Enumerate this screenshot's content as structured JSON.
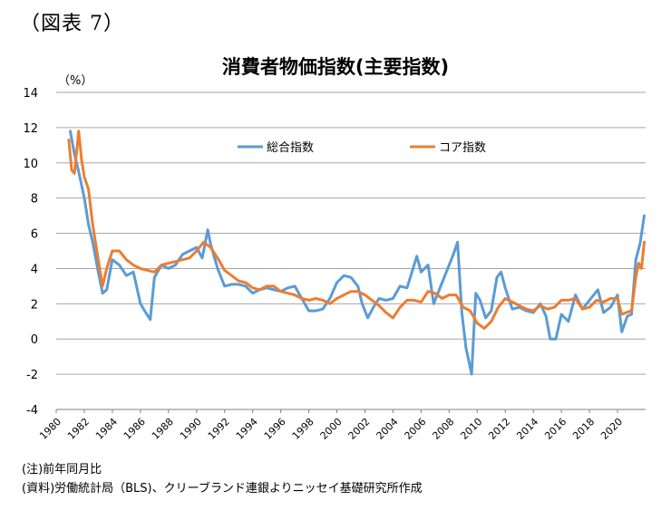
{
  "figure_label": "（図表 7）",
  "notes": {
    "note": "(注)前年同月比",
    "source": "(資料)労働統計局（BLS)、クリーブランド連銀よりニッセイ基礎研究所作成"
  },
  "colors": {
    "headline": "#5b9bd5",
    "core": "#ed7d31",
    "grid": "#a6a6a6"
  },
  "chart_data": {
    "type": "line",
    "title": "消費者物価指数(主要指数)",
    "ylabel": "（%）",
    "xlabel": "",
    "ylim": [
      -4,
      14
    ],
    "xlim": [
      1980,
      2022
    ],
    "yticks": [
      "-4",
      "-2",
      "0",
      "2",
      "4",
      "6",
      "8",
      "10",
      "12",
      "14"
    ],
    "xticks": [
      "1980",
      "1982",
      "1984",
      "1986",
      "1988",
      "1990",
      "1992",
      "1994",
      "1996",
      "1998",
      "2000",
      "2002",
      "2004",
      "2006",
      "2008",
      "2010",
      "2012",
      "2014",
      "2016",
      "2018",
      "2020"
    ],
    "grid": "horizontal",
    "legend_position": "top",
    "series": [
      {
        "name": "総合指数",
        "x": [
          1981.0,
          1981.3,
          1981.6,
          1982.0,
          1982.3,
          1982.6,
          1983.0,
          1983.3,
          1983.6,
          1984.0,
          1984.5,
          1985.0,
          1985.5,
          1986.0,
          1986.3,
          1986.7,
          1987.0,
          1987.5,
          1988.0,
          1988.5,
          1989.0,
          1989.5,
          1990.0,
          1990.4,
          1990.8,
          1991.0,
          1991.5,
          1992.0,
          1992.5,
          1993.0,
          1993.5,
          1994.0,
          1994.5,
          1995.0,
          1995.5,
          1996.0,
          1996.5,
          1997.0,
          1997.5,
          1998.0,
          1998.5,
          1999.0,
          1999.5,
          2000.0,
          2000.5,
          2001.0,
          2001.5,
          2001.8,
          2002.2,
          2002.6,
          2003.0,
          2003.5,
          2004.0,
          2004.5,
          2005.0,
          2005.7,
          2006.0,
          2006.5,
          2006.9,
          2007.3,
          2007.8,
          2008.3,
          2008.6,
          2008.9,
          2009.2,
          2009.6,
          2009.9,
          2010.2,
          2010.6,
          2011.0,
          2011.4,
          2011.7,
          2012.0,
          2012.5,
          2013.0,
          2013.5,
          2014.0,
          2014.5,
          2014.9,
          2015.2,
          2015.6,
          2016.0,
          2016.5,
          2017.0,
          2017.5,
          2018.0,
          2018.6,
          2019.0,
          2019.5,
          2020.0,
          2020.3,
          2020.7,
          2021.0,
          2021.3,
          2021.6,
          2021.9
        ],
        "values": [
          11.8,
          10.5,
          9.5,
          8.0,
          6.5,
          5.5,
          3.8,
          2.6,
          2.8,
          4.5,
          4.2,
          3.6,
          3.8,
          2.0,
          1.6,
          1.1,
          3.5,
          4.2,
          4.0,
          4.2,
          4.8,
          5.0,
          5.2,
          4.6,
          6.2,
          5.4,
          4.0,
          3.0,
          3.1,
          3.1,
          3.0,
          2.6,
          2.8,
          2.9,
          2.8,
          2.7,
          2.9,
          3.0,
          2.3,
          1.6,
          1.6,
          1.7,
          2.3,
          3.2,
          3.6,
          3.5,
          3.0,
          2.0,
          1.2,
          1.8,
          2.3,
          2.2,
          2.3,
          3.0,
          2.9,
          4.7,
          3.8,
          4.2,
          2.0,
          2.8,
          3.8,
          4.8,
          5.5,
          1.5,
          -0.5,
          -2.0,
          2.6,
          2.2,
          1.2,
          1.6,
          3.5,
          3.8,
          2.9,
          1.7,
          1.8,
          1.6,
          1.5,
          2.0,
          1.3,
          0.0,
          0.0,
          1.4,
          1.0,
          2.5,
          1.7,
          2.2,
          2.8,
          1.5,
          1.8,
          2.5,
          0.4,
          1.3,
          1.4,
          4.5,
          5.4,
          7.0
        ]
      },
      {
        "name": "コア指数",
        "x": [
          1980.9,
          1981.1,
          1981.3,
          1981.6,
          1981.8,
          1982.0,
          1982.3,
          1982.6,
          1983.0,
          1983.3,
          1983.6,
          1984.0,
          1984.5,
          1985.0,
          1985.5,
          1986.0,
          1986.5,
          1987.0,
          1987.5,
          1988.0,
          1988.5,
          1989.0,
          1989.5,
          1990.0,
          1990.5,
          1991.0,
          1991.5,
          1992.0,
          1992.5,
          1993.0,
          1993.5,
          1994.0,
          1994.5,
          1995.0,
          1995.5,
          1996.0,
          1996.5,
          1997.0,
          1997.5,
          1998.0,
          1998.5,
          1999.0,
          1999.5,
          2000.0,
          2000.5,
          2001.0,
          2001.5,
          2002.0,
          2002.5,
          2003.0,
          2003.5,
          2004.0,
          2004.5,
          2005.0,
          2005.5,
          2006.0,
          2006.5,
          2007.0,
          2007.5,
          2008.0,
          2008.5,
          2009.0,
          2009.5,
          2010.0,
          2010.5,
          2011.0,
          2011.5,
          2012.0,
          2012.5,
          2013.0,
          2013.5,
          2014.0,
          2014.5,
          2015.0,
          2015.5,
          2016.0,
          2016.5,
          2017.0,
          2017.5,
          2018.0,
          2018.5,
          2019.0,
          2019.5,
          2020.0,
          2020.3,
          2020.6,
          2021.0,
          2021.3,
          2021.5,
          2021.7,
          2021.9
        ],
        "values": [
          11.3,
          9.6,
          9.4,
          11.8,
          10.2,
          9.2,
          8.5,
          6.5,
          4.5,
          3.0,
          4.0,
          5.0,
          5.0,
          4.5,
          4.2,
          4.0,
          3.9,
          3.8,
          4.2,
          4.3,
          4.4,
          4.5,
          4.6,
          5.0,
          5.5,
          5.2,
          4.6,
          3.9,
          3.6,
          3.3,
          3.2,
          2.9,
          2.8,
          3.0,
          3.0,
          2.7,
          2.6,
          2.5,
          2.3,
          2.2,
          2.3,
          2.2,
          2.0,
          2.3,
          2.5,
          2.7,
          2.7,
          2.5,
          2.2,
          1.9,
          1.5,
          1.2,
          1.8,
          2.2,
          2.2,
          2.1,
          2.7,
          2.6,
          2.3,
          2.5,
          2.5,
          1.8,
          1.6,
          0.9,
          0.6,
          1.0,
          1.8,
          2.3,
          2.1,
          1.9,
          1.7,
          1.6,
          1.9,
          1.7,
          1.8,
          2.2,
          2.2,
          2.3,
          1.7,
          1.8,
          2.2,
          2.1,
          2.3,
          2.3,
          1.4,
          1.5,
          1.6,
          3.5,
          4.3,
          4.0,
          5.5
        ]
      }
    ]
  }
}
